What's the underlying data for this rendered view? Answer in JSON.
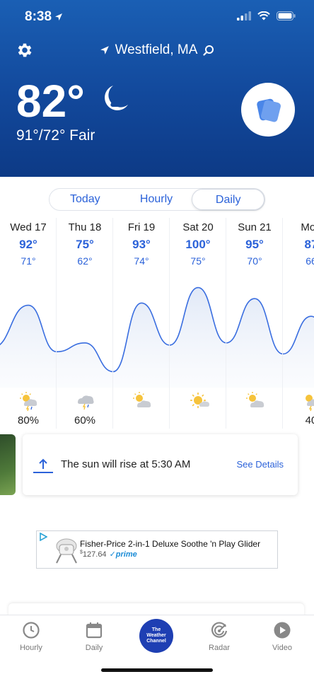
{
  "status_bar": {
    "time": "8:38"
  },
  "header": {
    "location": "Westfield, MA",
    "temperature": "82°",
    "hi_lo_condition": "91°/72° Fair",
    "condition_icon": "moon-clear-night-icon"
  },
  "tabs": [
    {
      "label": "Today",
      "active": false
    },
    {
      "label": "Hourly",
      "active": false
    },
    {
      "label": "Daily",
      "active": true
    }
  ],
  "daily": [
    {
      "day": "Wed 17",
      "hi": "92°",
      "lo": "71°",
      "icon": "thunderstorm-partly-sunny-icon",
      "precip": "80%"
    },
    {
      "day": "Thu 18",
      "hi": "75°",
      "lo": "62°",
      "icon": "thunderstorm-cloud-icon",
      "precip": "60%"
    },
    {
      "day": "Fri 19",
      "hi": "93°",
      "lo": "74°",
      "icon": "partly-sunny-icon",
      "precip": ""
    },
    {
      "day": "Sat 20",
      "hi": "100°",
      "lo": "75°",
      "icon": "mostly-sunny-icon",
      "precip": ""
    },
    {
      "day": "Sun 21",
      "hi": "95°",
      "lo": "70°",
      "icon": "partly-sunny-icon",
      "precip": ""
    },
    {
      "day": "Mon",
      "hi": "87",
      "lo": "66",
      "icon": "thunderstorm-partly-sunny-icon",
      "precip": "40"
    }
  ],
  "sun_card": {
    "text": "The sun will rise at 5:30 AM",
    "link": "See Details"
  },
  "ad": {
    "title": "Fisher-Price 2-in-1 Deluxe Soothe 'n Play Glider",
    "currency": "$",
    "price": "127.64",
    "prime": "prime"
  },
  "bottom_nav": {
    "hourly": "Hourly",
    "daily": "Daily",
    "center_line1": "The",
    "center_line2": "Weather",
    "center_line3": "Channel",
    "radar": "Radar",
    "video": "Video"
  },
  "colors": {
    "accent": "#2b62d9",
    "header_top": "#1a5fb4",
    "header_bottom": "#0d3a86",
    "brand": "#1e3fb3"
  }
}
